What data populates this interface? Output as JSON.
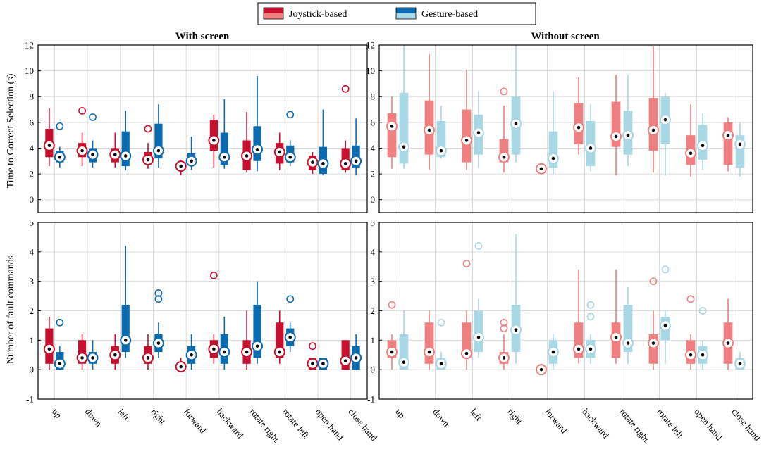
{
  "legend": {
    "items": [
      {
        "label": "Joystick-based",
        "dark": "#c8102e",
        "light": "#f08080"
      },
      {
        "label": "Gesture-based",
        "dark": "#0b6bb0",
        "light": "#a8d8e6"
      }
    ]
  },
  "colors": {
    "joy_dark": "#c8102e",
    "joy_light": "#f08080",
    "ges_dark": "#0b6bb0",
    "ges_light": "#a8d8e6",
    "grid": "#dcdcdc",
    "axis": "#000000"
  },
  "categories": [
    "up",
    "down",
    "left",
    "right",
    "forward",
    "backward",
    "rotate right",
    "rotate left",
    "open hand",
    "close hand"
  ],
  "chart_data": [
    {
      "type": "box",
      "id": "time-with",
      "title": "With screen",
      "ylabel": "Time to Correct Selection (s)",
      "ylim": [
        -1,
        12
      ],
      "yticks": [
        0,
        2,
        4,
        6,
        8,
        10,
        12
      ],
      "palette": "dark",
      "series": [
        {
          "name": "Joystick-based",
          "boxes": [
            {
              "q1": 3.3,
              "q3": 5.5,
              "wlo": 2.6,
              "whi": 7.1,
              "med": 4.2,
              "out": []
            },
            {
              "q1": 3.3,
              "q3": 4.4,
              "wlo": 2.6,
              "whi": 5.2,
              "med": 3.8,
              "out": [
                6.9
              ]
            },
            {
              "q1": 2.9,
              "q3": 4.0,
              "wlo": 2.5,
              "whi": 5.2,
              "med": 3.5,
              "out": []
            },
            {
              "q1": 2.8,
              "q3": 3.7,
              "wlo": 2.4,
              "whi": 4.4,
              "med": 3.1,
              "out": [
                5.5
              ]
            },
            {
              "q1": 2.3,
              "q3": 2.9,
              "wlo": 1.9,
              "whi": 3.1,
              "med": 2.6,
              "out": []
            },
            {
              "q1": 3.8,
              "q3": 6.2,
              "wlo": 2.5,
              "whi": 6.6,
              "med": 4.6,
              "out": []
            },
            {
              "q1": 2.3,
              "q3": 4.6,
              "wlo": 2.1,
              "whi": 6.8,
              "med": 3.4,
              "out": []
            },
            {
              "q1": 2.8,
              "q3": 4.4,
              "wlo": 2.3,
              "whi": 5.2,
              "med": 3.7,
              "out": []
            },
            {
              "q1": 2.3,
              "q3": 3.4,
              "wlo": 2.0,
              "whi": 3.7,
              "med": 2.9,
              "out": []
            },
            {
              "q1": 2.3,
              "q3": 4.0,
              "wlo": 2.1,
              "whi": 4.6,
              "med": 2.8,
              "out": [
                8.6
              ]
            }
          ]
        },
        {
          "name": "Gesture-based",
          "boxes": [
            {
              "q1": 2.9,
              "q3": 3.8,
              "wlo": 2.5,
              "whi": 4.1,
              "med": 3.3,
              "out": [
                5.7
              ]
            },
            {
              "q1": 2.9,
              "q3": 4.0,
              "wlo": 2.5,
              "whi": 4.6,
              "med": 3.5,
              "out": [
                6.4
              ]
            },
            {
              "q1": 2.6,
              "q3": 5.3,
              "wlo": 2.3,
              "whi": 6.9,
              "med": 3.4,
              "out": []
            },
            {
              "q1": 3.2,
              "q3": 5.9,
              "wlo": 2.5,
              "whi": 7.4,
              "med": 3.8,
              "out": []
            },
            {
              "q1": 2.7,
              "q3": 3.6,
              "wlo": 2.3,
              "whi": 4.9,
              "med": 3.0,
              "out": []
            },
            {
              "q1": 2.7,
              "q3": 5.2,
              "wlo": 2.4,
              "whi": 7.8,
              "med": 3.3,
              "out": []
            },
            {
              "q1": 3.0,
              "q3": 5.7,
              "wlo": 2.2,
              "whi": 9.6,
              "med": 3.9,
              "out": []
            },
            {
              "q1": 2.9,
              "q3": 4.2,
              "wlo": 2.6,
              "whi": 4.6,
              "med": 3.3,
              "out": [
                6.6
              ]
            },
            {
              "q1": 2.0,
              "q3": 4.1,
              "wlo": 1.9,
              "whi": 7.0,
              "med": 2.8,
              "out": []
            },
            {
              "q1": 2.5,
              "q3": 4.2,
              "wlo": 1.9,
              "whi": 6.3,
              "med": 3.0,
              "out": []
            }
          ]
        }
      ]
    },
    {
      "type": "box",
      "id": "time-without",
      "title": "Without screen",
      "ylabel": "",
      "ylim": [
        -1,
        12
      ],
      "yticks": [
        0,
        2,
        4,
        6,
        8,
        10,
        12
      ],
      "palette": "light",
      "series": [
        {
          "name": "Joystick-based",
          "boxes": [
            {
              "q1": 3.3,
              "q3": 6.7,
              "wlo": 2.4,
              "whi": 8.0,
              "med": 5.7,
              "out": []
            },
            {
              "q1": 3.5,
              "q3": 7.7,
              "wlo": 2.3,
              "whi": 11.3,
              "med": 5.4,
              "out": []
            },
            {
              "q1": 2.9,
              "q3": 7.0,
              "wlo": 2.3,
              "whi": 10.1,
              "med": 4.6,
              "out": []
            },
            {
              "q1": 2.9,
              "q3": 4.7,
              "wlo": 2.1,
              "whi": 7.3,
              "med": 3.3,
              "out": [
                8.4
              ]
            },
            {
              "q1": 2.2,
              "q3": 2.6,
              "wlo": 2.1,
              "whi": 2.8,
              "med": 2.4,
              "out": []
            },
            {
              "q1": 4.3,
              "q3": 7.5,
              "wlo": 3.5,
              "whi": 9.5,
              "med": 5.6,
              "out": []
            },
            {
              "q1": 4.1,
              "q3": 7.6,
              "wlo": 1.9,
              "whi": 9.7,
              "med": 4.9,
              "out": []
            },
            {
              "q1": 3.8,
              "q3": 7.9,
              "wlo": 2.1,
              "whi": 11.9,
              "med": 5.4,
              "out": []
            },
            {
              "q1": 2.7,
              "q3": 5.0,
              "wlo": 1.8,
              "whi": 7.4,
              "med": 3.6,
              "out": []
            },
            {
              "q1": 2.7,
              "q3": 6.0,
              "wlo": 2.2,
              "whi": 6.4,
              "med": 5.0,
              "out": []
            }
          ]
        },
        {
          "name": "Gesture-based",
          "boxes": [
            {
              "q1": 2.8,
              "q3": 8.3,
              "wlo": 2.4,
              "whi": 12.0,
              "med": 4.1,
              "out": []
            },
            {
              "q1": 3.3,
              "q3": 6.1,
              "wlo": 3.2,
              "whi": 7.3,
              "med": 3.8,
              "out": []
            },
            {
              "q1": 3.5,
              "q3": 6.6,
              "wlo": 2.5,
              "whi": 8.4,
              "med": 5.2,
              "out": []
            },
            {
              "q1": 3.5,
              "q3": 8.0,
              "wlo": 2.9,
              "whi": 12.0,
              "med": 5.9,
              "out": []
            },
            {
              "q1": 2.5,
              "q3": 5.3,
              "wlo": 2.0,
              "whi": 8.4,
              "med": 3.2,
              "out": []
            },
            {
              "q1": 2.6,
              "q3": 6.1,
              "wlo": 2.2,
              "whi": 7.4,
              "med": 4.0,
              "out": []
            },
            {
              "q1": 3.5,
              "q3": 6.9,
              "wlo": 2.6,
              "whi": 9.7,
              "med": 5.0,
              "out": []
            },
            {
              "q1": 4.3,
              "q3": 8.0,
              "wlo": 1.9,
              "whi": 8.3,
              "med": 6.2,
              "out": []
            },
            {
              "q1": 3.1,
              "q3": 5.8,
              "wlo": 2.3,
              "whi": 6.7,
              "med": 4.2,
              "out": []
            },
            {
              "q1": 2.5,
              "q3": 5.0,
              "wlo": 1.8,
              "whi": 6.0,
              "med": 4.3,
              "out": []
            }
          ]
        }
      ]
    },
    {
      "type": "box",
      "id": "fault-with",
      "title": "",
      "ylabel": "Number of fault commands",
      "ylim": [
        -1,
        5
      ],
      "yticks": [
        -1,
        0,
        1,
        2,
        3,
        4,
        5
      ],
      "palette": "dark",
      "series": [
        {
          "name": "Joystick-based",
          "boxes": [
            {
              "q1": 0.2,
              "q3": 1.4,
              "wlo": 0.0,
              "whi": 1.8,
              "med": 0.7,
              "out": []
            },
            {
              "q1": 0.2,
              "q3": 1.0,
              "wlo": 0.0,
              "whi": 1.2,
              "med": 0.4,
              "out": []
            },
            {
              "q1": 0.2,
              "q3": 0.8,
              "wlo": 0.0,
              "whi": 1.2,
              "med": 0.5,
              "out": []
            },
            {
              "q1": 0.2,
              "q3": 0.8,
              "wlo": 0.0,
              "whi": 1.2,
              "med": 0.4,
              "out": []
            },
            {
              "q1": 0.0,
              "q3": 0.2,
              "wlo": 0.0,
              "whi": 0.4,
              "med": 0.1,
              "out": []
            },
            {
              "q1": 0.4,
              "q3": 1.0,
              "wlo": 0.2,
              "whi": 1.2,
              "med": 0.7,
              "out": [
                3.2
              ]
            },
            {
              "q1": 0.2,
              "q3": 1.0,
              "wlo": 0.0,
              "whi": 2.0,
              "med": 0.6,
              "out": []
            },
            {
              "q1": 0.4,
              "q3": 1.6,
              "wlo": 0.2,
              "whi": 2.0,
              "med": 0.6,
              "out": []
            },
            {
              "q1": 0.0,
              "q3": 0.4,
              "wlo": 0.0,
              "whi": 0.4,
              "med": 0.2,
              "out": [
                0.8
              ]
            },
            {
              "q1": 0.0,
              "q3": 1.0,
              "wlo": 0.0,
              "whi": 1.0,
              "med": 0.3,
              "out": []
            }
          ]
        },
        {
          "name": "Gesture-based",
          "boxes": [
            {
              "q1": 0.0,
              "q3": 0.6,
              "wlo": 0.0,
              "whi": 0.8,
              "med": 0.2,
              "out": [
                1.6
              ]
            },
            {
              "q1": 0.2,
              "q3": 0.6,
              "wlo": 0.0,
              "whi": 1.0,
              "med": 0.4,
              "out": []
            },
            {
              "q1": 0.6,
              "q3": 2.2,
              "wlo": 0.4,
              "whi": 4.2,
              "med": 1.0,
              "out": []
            },
            {
              "q1": 0.6,
              "q3": 1.2,
              "wlo": 0.4,
              "whi": 1.6,
              "med": 0.9,
              "out": [
                2.4,
                2.6
              ]
            },
            {
              "q1": 0.2,
              "q3": 0.8,
              "wlo": 0.0,
              "whi": 1.2,
              "med": 0.5,
              "out": []
            },
            {
              "q1": 0.2,
              "q3": 1.2,
              "wlo": 0.0,
              "whi": 1.8,
              "med": 0.6,
              "out": []
            },
            {
              "q1": 0.4,
              "q3": 2.2,
              "wlo": 0.2,
              "whi": 3.0,
              "med": 0.8,
              "out": []
            },
            {
              "q1": 0.8,
              "q3": 1.4,
              "wlo": 0.6,
              "whi": 1.6,
              "med": 1.1,
              "out": [
                2.4
              ]
            },
            {
              "q1": 0.0,
              "q3": 0.4,
              "wlo": 0.0,
              "whi": 0.4,
              "med": 0.2,
              "out": []
            },
            {
              "q1": 0.0,
              "q3": 0.8,
              "wlo": 0.0,
              "whi": 1.2,
              "med": 0.4,
              "out": []
            }
          ]
        }
      ]
    },
    {
      "type": "box",
      "id": "fault-without",
      "title": "",
      "ylabel": "",
      "ylim": [
        -1,
        5
      ],
      "yticks": [
        -1,
        0,
        1,
        2,
        3,
        4,
        5
      ],
      "palette": "light",
      "series": [
        {
          "name": "Joystick-based",
          "boxes": [
            {
              "q1": 0.4,
              "q3": 1.0,
              "wlo": 0.0,
              "whi": 1.2,
              "med": 0.6,
              "out": [
                2.2
              ]
            },
            {
              "q1": 0.2,
              "q3": 1.6,
              "wlo": 0.0,
              "whi": 2.0,
              "med": 0.6,
              "out": []
            },
            {
              "q1": 0.4,
              "q3": 1.6,
              "wlo": 0.0,
              "whi": 2.0,
              "med": 0.55,
              "out": [
                3.6
              ]
            },
            {
              "q1": 0.2,
              "q3": 0.6,
              "wlo": 0.0,
              "whi": 1.2,
              "med": 0.4,
              "out": [
                1.4,
                1.6
              ]
            },
            {
              "q1": 0.0,
              "q3": 0.1,
              "wlo": 0.0,
              "whi": 0.2,
              "med": 0.0,
              "out": []
            },
            {
              "q1": 0.4,
              "q3": 1.6,
              "wlo": 0.2,
              "whi": 3.4,
              "med": 0.7,
              "out": []
            },
            {
              "q1": 0.4,
              "q3": 1.6,
              "wlo": 0.2,
              "whi": 3.4,
              "med": 1.1,
              "out": []
            },
            {
              "q1": 0.2,
              "q3": 1.2,
              "wlo": 0.0,
              "whi": 2.0,
              "med": 0.9,
              "out": [
                3.0
              ]
            },
            {
              "q1": 0.2,
              "q3": 1.0,
              "wlo": 0.0,
              "whi": 1.2,
              "med": 0.5,
              "out": [
                2.4
              ]
            },
            {
              "q1": 0.2,
              "q3": 1.6,
              "wlo": 0.0,
              "whi": 2.4,
              "med": 0.9,
              "out": []
            }
          ]
        },
        {
          "name": "Gesture-based",
          "boxes": [
            {
              "q1": 0.0,
              "q3": 1.2,
              "wlo": 0.0,
              "whi": 2.0,
              "med": 0.25,
              "out": []
            },
            {
              "q1": 0.0,
              "q3": 0.4,
              "wlo": 0.0,
              "whi": 0.6,
              "med": 0.2,
              "out": [
                1.6
              ]
            },
            {
              "q1": 0.6,
              "q3": 2.0,
              "wlo": 0.4,
              "whi": 2.4,
              "med": 1.1,
              "out": [
                4.2
              ]
            },
            {
              "q1": 0.6,
              "q3": 2.2,
              "wlo": 0.2,
              "whi": 4.6,
              "med": 1.35,
              "out": []
            },
            {
              "q1": 0.2,
              "q3": 1.0,
              "wlo": 0.0,
              "whi": 1.2,
              "med": 0.6,
              "out": []
            },
            {
              "q1": 0.4,
              "q3": 1.0,
              "wlo": 0.2,
              "whi": 1.2,
              "med": 0.7,
              "out": [
                1.8,
                2.2
              ]
            },
            {
              "q1": 0.6,
              "q3": 2.2,
              "wlo": 0.2,
              "whi": 2.8,
              "med": 0.9,
              "out": []
            },
            {
              "q1": 1.0,
              "q3": 1.8,
              "wlo": 0.2,
              "whi": 2.0,
              "med": 1.5,
              "out": [
                3.4
              ]
            },
            {
              "q1": 0.2,
              "q3": 0.8,
              "wlo": 0.0,
              "whi": 1.0,
              "med": 0.5,
              "out": [
                2.0
              ]
            },
            {
              "q1": 0.0,
              "q3": 0.4,
              "wlo": 0.0,
              "whi": 0.6,
              "med": 0.2,
              "out": []
            }
          ]
        }
      ]
    }
  ]
}
